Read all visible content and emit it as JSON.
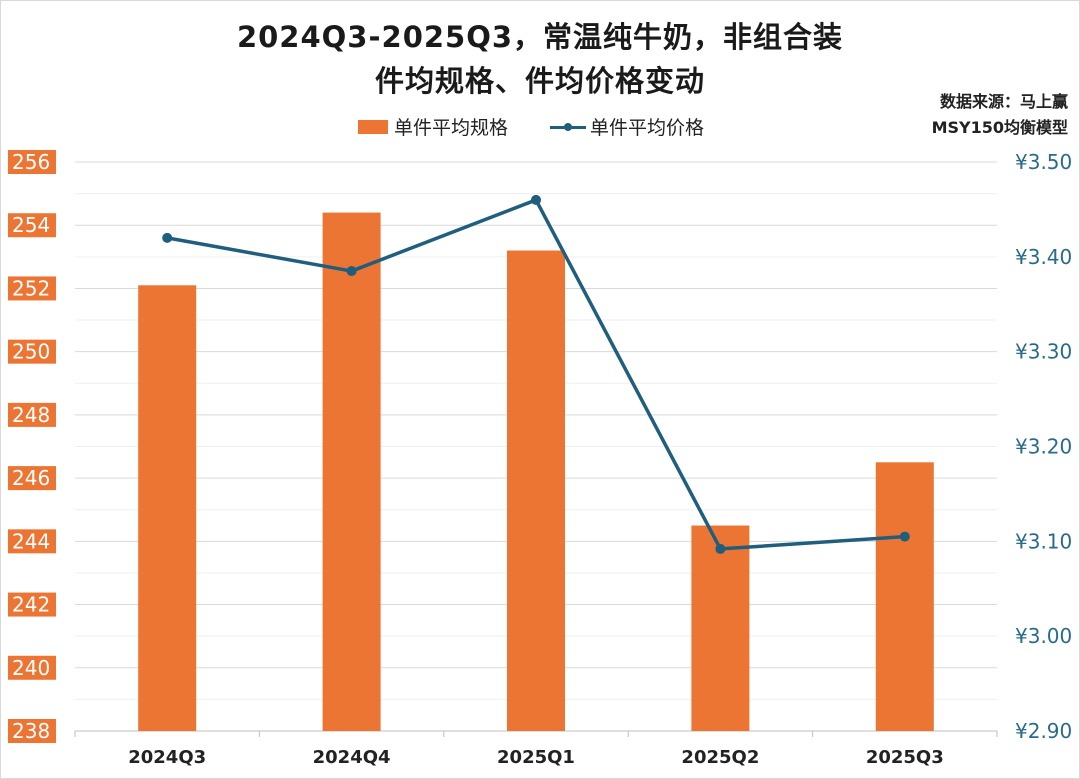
{
  "chart_data": {
    "type": "bar+line",
    "title_line1": "2024Q3-2025Q3，常温纯牛奶，非组合装",
    "title_line2": "件均规格、件均价格变动",
    "source_line1": "数据来源：马上赢",
    "source_line2": "MSY150均衡模型",
    "categories": [
      "2024Q3",
      "2024Q4",
      "2025Q1",
      "2025Q2",
      "2025Q3"
    ],
    "series": [
      {
        "name": "单件平均规格",
        "type": "bar",
        "axis": "left",
        "values": [
          252.1,
          254.4,
          253.2,
          244.5,
          246.5
        ]
      },
      {
        "name": "单件平均价格",
        "type": "line",
        "axis": "right",
        "values": [
          3.42,
          3.385,
          3.46,
          3.092,
          3.105
        ]
      }
    ],
    "y_left": {
      "lim": [
        238,
        256
      ],
      "ticks": [
        "238",
        "240",
        "242",
        "244",
        "246",
        "248",
        "250",
        "252",
        "254",
        "256"
      ]
    },
    "y_right": {
      "lim": [
        2.9,
        3.5
      ],
      "ticks": [
        "¥2.90",
        "¥3.00",
        "¥3.10",
        "¥3.20",
        "¥3.30",
        "¥3.40",
        "¥3.50"
      ]
    },
    "grid": true,
    "legend_position": "top",
    "colors": {
      "bar": "#ED7533",
      "line": "#1F5E7D",
      "left_axis_label_bg": "#ED7533",
      "right_axis_label": "#2A6B8A"
    }
  }
}
